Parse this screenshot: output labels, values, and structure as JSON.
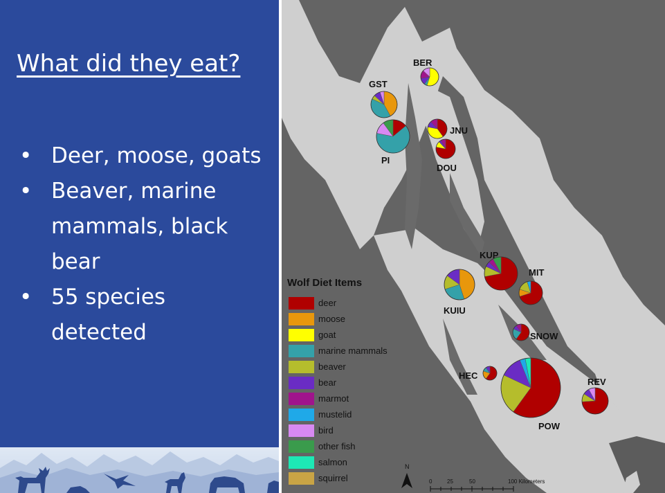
{
  "slide": {
    "title": "What did they eat?",
    "bullets": [
      {
        "text": "Deer, moose, goats"
      },
      {
        "text": "Beaver, marine mammals, black bear"
      },
      {
        "text": "55 species detected"
      }
    ],
    "bullet_symbol": "•"
  },
  "map": {
    "north_label": "N",
    "scale": {
      "ticks": [
        "0",
        "25",
        "50",
        "100 Kilometers"
      ]
    }
  },
  "legend": {
    "title": "Wolf Diet Items",
    "items": [
      {
        "label": "deer",
        "color": "#b00000"
      },
      {
        "label": "moose",
        "color": "#e8970c"
      },
      {
        "label": "goat",
        "color": "#ffff00"
      },
      {
        "label": "marine mammals",
        "color": "#34a1a9"
      },
      {
        "label": "beaver",
        "color": "#b5bd2c"
      },
      {
        "label": "bear",
        "color": "#6a2cc4"
      },
      {
        "label": "marmot",
        "color": "#a0148c"
      },
      {
        "label": "mustelid",
        "color": "#1fa9e8"
      },
      {
        "label": "bird",
        "color": "#d889f2"
      },
      {
        "label": "other fish",
        "color": "#3a9b4c"
      },
      {
        "label": "salmon",
        "color": "#1de8b5"
      },
      {
        "label": "squirrel",
        "color": "#c9a445"
      }
    ]
  },
  "chart_data": {
    "type": "pie",
    "categories": [
      "deer",
      "moose",
      "goat",
      "marine mammals",
      "beaver",
      "bear",
      "marmot",
      "mustelid",
      "bird",
      "other fish",
      "salmon",
      "squirrel"
    ],
    "pies": [
      {
        "label": "BER",
        "values": [
          0,
          0,
          55,
          5,
          0,
          12,
          15,
          0,
          13,
          0,
          0,
          0
        ]
      },
      {
        "label": "GST",
        "values": [
          0,
          42,
          0,
          40,
          5,
          8,
          0,
          0,
          5,
          0,
          0,
          0
        ]
      },
      {
        "label": "PI",
        "values": [
          14,
          0,
          0,
          64,
          0,
          0,
          0,
          0,
          12,
          10,
          0,
          0
        ]
      },
      {
        "label": "JNU",
        "values": [
          40,
          0,
          38,
          0,
          0,
          10,
          12,
          0,
          0,
          0,
          0,
          0
        ]
      },
      {
        "label": "DOU",
        "values": [
          78,
          0,
          10,
          0,
          0,
          4,
          8,
          0,
          0,
          0,
          0,
          0
        ]
      },
      {
        "label": "KUP",
        "values": [
          72,
          0,
          0,
          0,
          10,
          5,
          5,
          0,
          0,
          8,
          0,
          0
        ]
      },
      {
        "label": "MIT",
        "values": [
          70,
          10,
          0,
          0,
          15,
          0,
          0,
          5,
          0,
          0,
          0,
          0
        ]
      },
      {
        "label": "KUIU",
        "values": [
          0,
          45,
          0,
          25,
          15,
          15,
          0,
          0,
          0,
          0,
          0,
          0
        ]
      },
      {
        "label": "SNOW",
        "values": [
          60,
          0,
          0,
          22,
          0,
          8,
          10,
          0,
          0,
          0,
          0,
          0
        ]
      },
      {
        "label": "HEC",
        "values": [
          60,
          20,
          0,
          10,
          0,
          10,
          0,
          0,
          0,
          0,
          0,
          0
        ]
      },
      {
        "label": "POW",
        "values": [
          60,
          0,
          0,
          0,
          22,
          12,
          0,
          3,
          0,
          0,
          3,
          0
        ]
      },
      {
        "label": "REV",
        "values": [
          74,
          0,
          0,
          0,
          10,
          8,
          0,
          0,
          8,
          0,
          0,
          0
        ]
      }
    ]
  }
}
